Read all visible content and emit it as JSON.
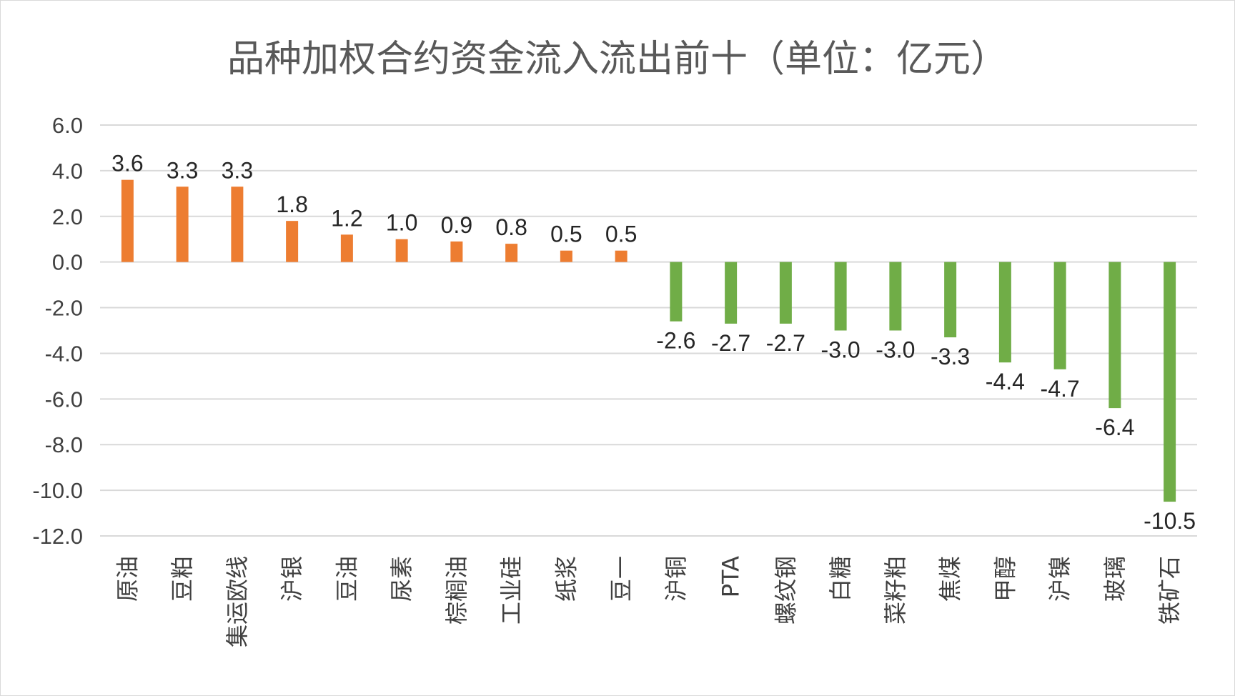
{
  "chart_data": {
    "type": "bar",
    "title": "品种加权合约资金流入流出前十（单位：亿元）",
    "categories": [
      "原油",
      "豆粕",
      "集运欧线",
      "沪银",
      "豆油",
      "尿素",
      "棕榈油",
      "工业硅",
      "纸浆",
      "豆一",
      "沪铜",
      "PTA",
      "螺纹钢",
      "白糖",
      "菜籽粕",
      "焦煤",
      "甲醇",
      "沪镍",
      "玻璃",
      "铁矿石"
    ],
    "values": [
      3.6,
      3.3,
      3.3,
      1.8,
      1.2,
      1.0,
      0.9,
      0.8,
      0.5,
      0.5,
      -2.6,
      -2.7,
      -2.7,
      -3.0,
      -3.0,
      -3.3,
      -4.4,
      -4.7,
      -6.4,
      -10.5
    ],
    "value_labels": [
      "3.6",
      "3.3",
      "3.3",
      "1.8",
      "1.2",
      "1.0",
      "0.9",
      "0.8",
      "0.5",
      "0.5",
      "-2.6",
      "-2.7",
      "-2.7",
      "-3.0",
      "-3.0",
      "-3.3",
      "-4.4",
      "-4.7",
      "-6.4",
      "-10.5"
    ],
    "ylim": [
      -12,
      6
    ],
    "yticks": [
      "6.0",
      "4.0",
      "2.0",
      "0.0",
      "-2.0",
      "-4.0",
      "-6.0",
      "-8.0",
      "-10.0",
      "-12.0"
    ],
    "ytick_values": [
      6,
      4,
      2,
      0,
      -2,
      -4,
      -6,
      -8,
      -10,
      -12
    ],
    "grid": true,
    "colors": {
      "positive": "#ED7D31",
      "negative": "#70AD47",
      "grid": "#d9d9d9"
    }
  }
}
